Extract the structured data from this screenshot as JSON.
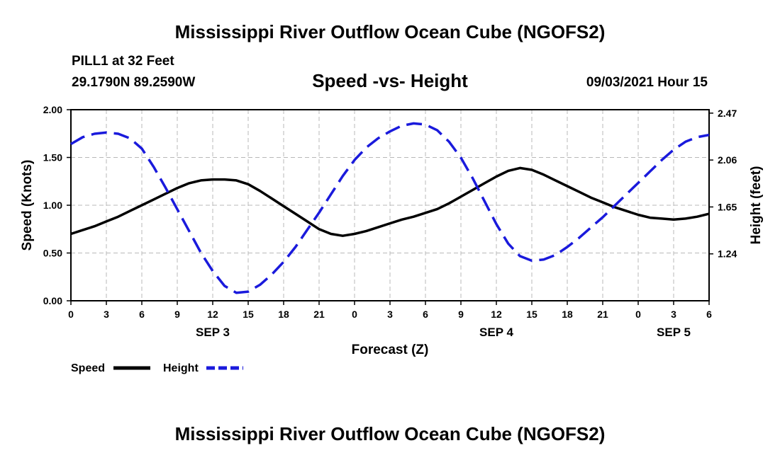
{
  "header": {
    "title": "Mississippi River Outflow Ocean Cube (NGOFS2)",
    "station": "PILL1 at 32 Feet",
    "coords": "29.1790N  89.2590W",
    "subtitle": "Speed -vs- Height",
    "datetime": "09/03/2021 Hour 15"
  },
  "footer": {
    "title": "Mississippi River Outflow Ocean Cube (NGOFS2)"
  },
  "chart_data": {
    "type": "line",
    "xlabel": "Forecast (Z)",
    "x_hours": [
      0,
      1,
      2,
      3,
      4,
      5,
      6,
      7,
      8,
      9,
      10,
      11,
      12,
      13,
      14,
      15,
      16,
      17,
      18,
      19,
      20,
      21,
      22,
      23,
      24,
      25,
      26,
      27,
      28,
      29,
      30,
      31,
      32,
      33,
      34,
      35,
      36,
      37,
      38,
      39,
      40,
      41,
      42,
      43,
      44,
      45,
      46,
      47,
      48,
      49,
      50,
      51,
      52,
      53,
      54
    ],
    "xlim": [
      0,
      54
    ],
    "x_tick_hours": [
      0,
      3,
      6,
      9,
      12,
      15,
      18,
      21,
      24,
      27,
      30,
      33,
      36,
      39,
      42,
      45,
      48,
      51,
      54
    ],
    "x_tick_labels": [
      "0",
      "3",
      "6",
      "9",
      "12",
      "15",
      "18",
      "21",
      "0",
      "3",
      "6",
      "9",
      "12",
      "15",
      "18",
      "21",
      "0",
      "3",
      "6"
    ],
    "date_labels": [
      {
        "hour": 12,
        "label": "SEP 3"
      },
      {
        "hour": 36,
        "label": "SEP 4"
      },
      {
        "hour": 51,
        "label": "SEP 5"
      }
    ],
    "y_left": {
      "label": "Speed (Knots)",
      "lim": [
        0,
        2
      ],
      "ticks": [
        0,
        0.5,
        1.0,
        1.5,
        2.0
      ],
      "tick_labels": [
        "0.00",
        "0.50",
        "1.00",
        "1.50",
        "2.00"
      ]
    },
    "y_right": {
      "label": "Height (feet)",
      "lim": [
        0.83,
        2.5
      ],
      "ticks": [
        1.24,
        1.65,
        2.06,
        2.47
      ],
      "tick_labels": [
        "1.24",
        "1.65",
        "2.06",
        "2.47"
      ]
    },
    "series": [
      {
        "name": "Speed",
        "axis": "left",
        "color": "#000000",
        "style": "solid",
        "values": [
          0.7,
          0.74,
          0.78,
          0.83,
          0.88,
          0.94,
          1.0,
          1.06,
          1.12,
          1.18,
          1.23,
          1.26,
          1.27,
          1.27,
          1.26,
          1.22,
          1.15,
          1.07,
          0.99,
          0.91,
          0.83,
          0.75,
          0.7,
          0.68,
          0.7,
          0.73,
          0.77,
          0.81,
          0.85,
          0.88,
          0.92,
          0.96,
          1.02,
          1.09,
          1.16,
          1.23,
          1.3,
          1.36,
          1.39,
          1.37,
          1.32,
          1.26,
          1.2,
          1.14,
          1.08,
          1.03,
          0.98,
          0.94,
          0.9,
          0.87,
          0.86,
          0.85,
          0.86,
          0.88,
          0.91
        ]
      },
      {
        "name": "Height",
        "axis": "right",
        "color": "#1a1adc",
        "style": "dashed",
        "values": [
          2.2,
          2.26,
          2.29,
          2.3,
          2.29,
          2.25,
          2.16,
          2.0,
          1.82,
          1.63,
          1.44,
          1.25,
          1.09,
          0.96,
          0.9,
          0.91,
          0.97,
          1.06,
          1.17,
          1.3,
          1.45,
          1.6,
          1.76,
          1.92,
          2.06,
          2.17,
          2.25,
          2.31,
          2.36,
          2.38,
          2.37,
          2.32,
          2.22,
          2.08,
          1.9,
          1.7,
          1.5,
          1.33,
          1.22,
          1.18,
          1.19,
          1.23,
          1.3,
          1.38,
          1.47,
          1.56,
          1.66,
          1.76,
          1.86,
          1.96,
          2.06,
          2.15,
          2.22,
          2.26,
          2.28
        ]
      }
    ]
  }
}
